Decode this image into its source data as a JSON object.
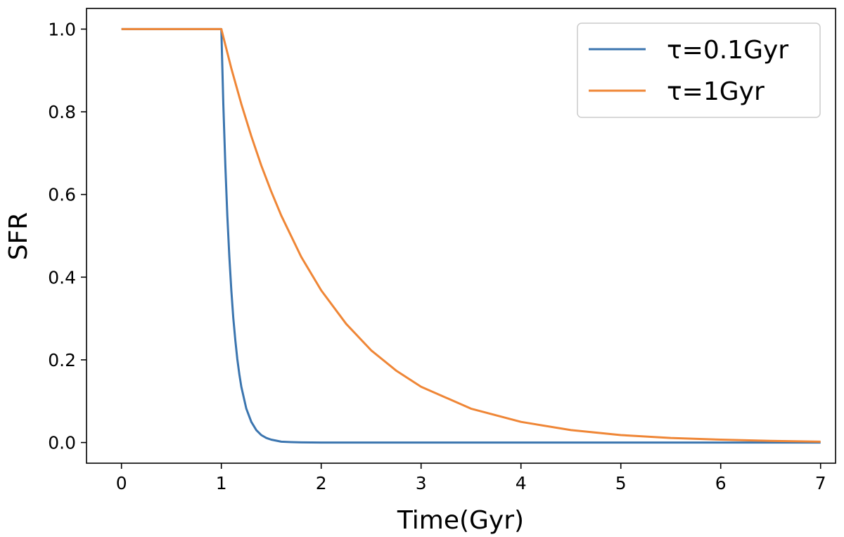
{
  "chart_data": {
    "type": "line",
    "xlabel": "Time(Gyr)",
    "ylabel": "SFR",
    "xlim": [
      -0.35,
      7.15
    ],
    "ylim": [
      -0.05,
      1.05
    ],
    "xticks": [
      0,
      1,
      2,
      3,
      4,
      5,
      6,
      7
    ],
    "yticks": [
      0.0,
      0.2,
      0.4,
      0.6,
      0.8,
      1.0
    ],
    "xtick_labels": [
      "0",
      "1",
      "2",
      "3",
      "4",
      "5",
      "6",
      "7"
    ],
    "ytick_labels": [
      "0.0",
      "0.2",
      "0.4",
      "0.6",
      "0.8",
      "1.0"
    ],
    "grid": false,
    "legend_position": "top-right",
    "series": [
      {
        "name": "τ=0.1Gyr",
        "color": "#3b75af",
        "x": [
          0,
          1,
          1.02,
          1.04,
          1.06,
          1.08,
          1.1,
          1.12,
          1.14,
          1.16,
          1.18,
          1.2,
          1.25,
          1.3,
          1.35,
          1.4,
          1.45,
          1.5,
          1.6,
          1.7,
          1.8,
          2,
          3,
          4,
          5,
          6,
          7
        ],
        "y": [
          1,
          1,
          0.819,
          0.67,
          0.549,
          0.449,
          0.368,
          0.301,
          0.247,
          0.202,
          0.165,
          0.135,
          0.082,
          0.05,
          0.03,
          0.018,
          0.011,
          0.007,
          0.002,
          0.001,
          0.0003,
          0.0,
          0.0,
          0.0,
          0.0,
          0.0,
          0.0
        ]
      },
      {
        "name": "τ=1Gyr",
        "color": "#ef8636",
        "x": [
          0,
          1,
          1.1,
          1.2,
          1.3,
          1.4,
          1.5,
          1.6,
          1.8,
          2,
          2.25,
          2.5,
          2.75,
          3,
          3.5,
          4,
          4.5,
          5,
          5.5,
          6,
          6.5,
          7
        ],
        "y": [
          1,
          1,
          0.905,
          0.819,
          0.741,
          0.67,
          0.607,
          0.549,
          0.449,
          0.368,
          0.287,
          0.223,
          0.174,
          0.135,
          0.082,
          0.05,
          0.03,
          0.018,
          0.011,
          0.007,
          0.004,
          0.002
        ]
      }
    ]
  }
}
